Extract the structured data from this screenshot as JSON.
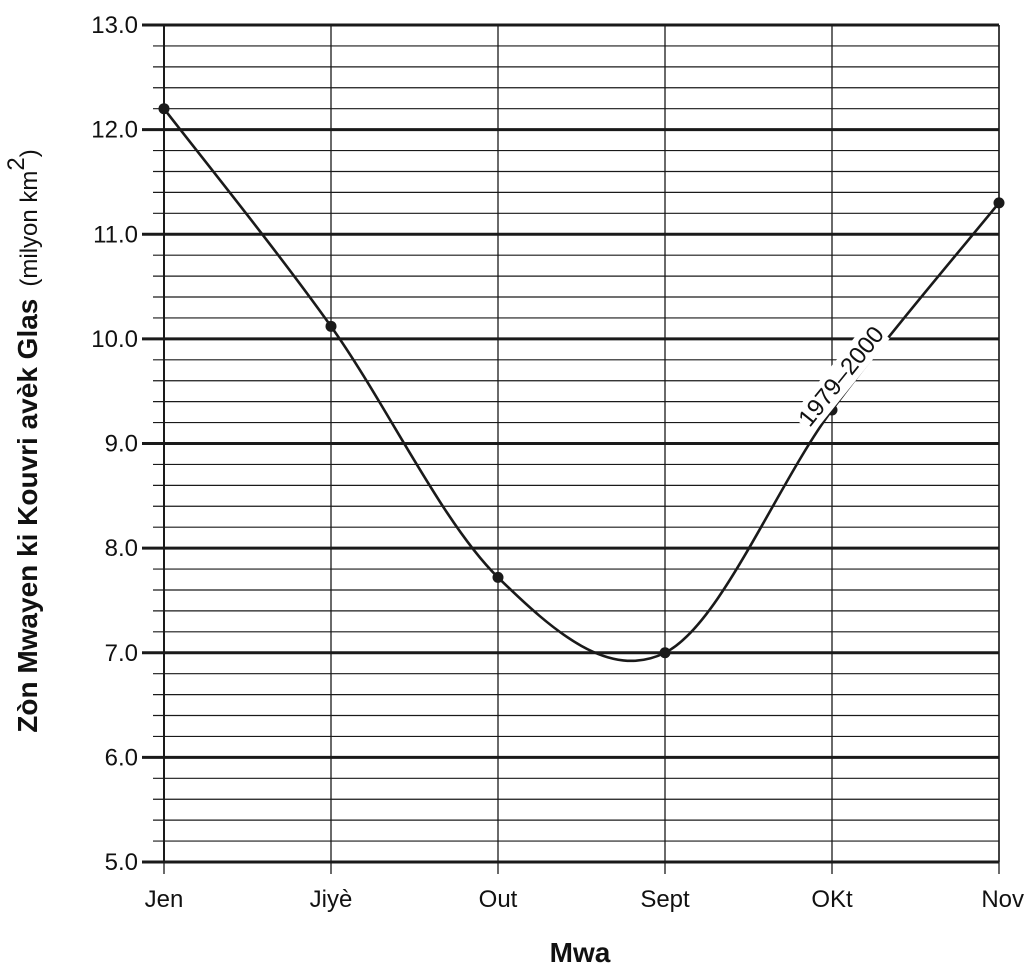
{
  "chart_data": {
    "type": "line",
    "title": "",
    "xlabel": "Mwa",
    "ylabel": "Zòn Mwayen ki Kouvri avèk Glas",
    "ylabel_unit": "(milyon km",
    "ylabel_unit_sup": "2",
    "ylabel_unit_close": ")",
    "categories": [
      "Jen",
      "Jiyè",
      "Out",
      "Sept",
      "OKt",
      "Nov"
    ],
    "y_ticks": [
      "5.0",
      "6.0",
      "7.0",
      "8.0",
      "9.0",
      "10.0",
      "11.0",
      "12.0",
      "13.0"
    ],
    "ylim": [
      5.0,
      13.0
    ],
    "minor_step": 0.2,
    "grid": true,
    "series": [
      {
        "label": "1979–2000",
        "values": [
          12.2,
          10.12,
          7.72,
          7.0,
          9.32,
          11.3
        ]
      }
    ],
    "colors": {
      "line": "#1a1a1a",
      "grid_major": "#1a1a1a",
      "grid_minor": "#1a1a1a",
      "text": "#111111"
    }
  }
}
